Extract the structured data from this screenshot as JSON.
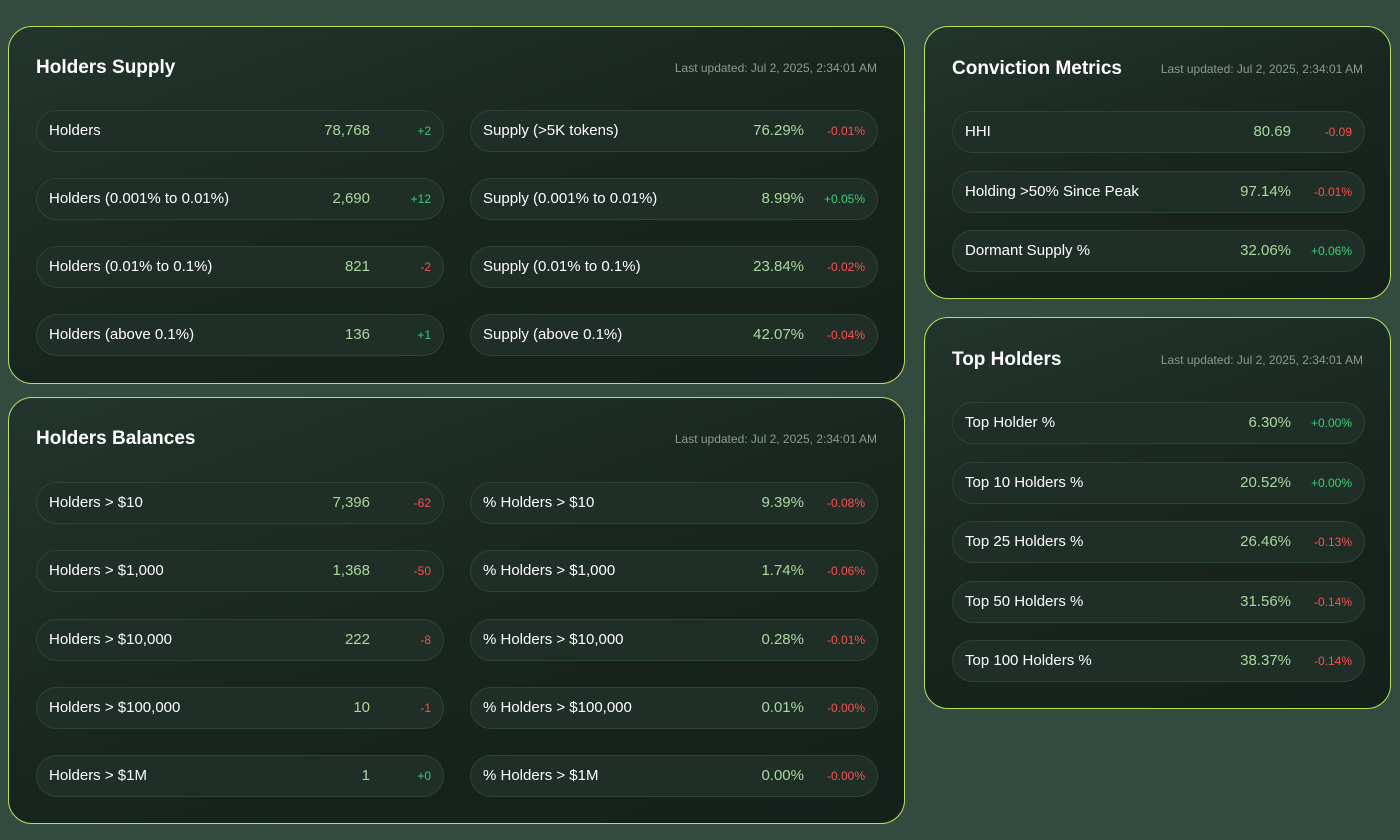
{
  "colors": {
    "positive": "#2fd07a",
    "negative": "#ff4d4d",
    "value": "#a8d89a",
    "border_accent": "#b8e05a"
  },
  "holders_supply": {
    "title": "Holders Supply",
    "updated": "Last updated: Jul 2, 2025, 2:34:01 AM",
    "left": [
      {
        "label": "Holders",
        "value": "78,768",
        "change": "+2",
        "dir": "pos"
      },
      {
        "label": "Holders (0.001% to 0.01%)",
        "value": "2,690",
        "change": "+12",
        "dir": "pos"
      },
      {
        "label": "Holders (0.01% to 0.1%)",
        "value": "821",
        "change": "-2",
        "dir": "neg"
      },
      {
        "label": "Holders (above 0.1%)",
        "value": "136",
        "change": "+1",
        "dir": "pos"
      }
    ],
    "right": [
      {
        "label": "Supply (>5K tokens)",
        "value": "76.29%",
        "change": "-0.01%",
        "dir": "neg"
      },
      {
        "label": "Supply (0.001% to 0.01%)",
        "value": "8.99%",
        "change": "+0.05%",
        "dir": "pos"
      },
      {
        "label": "Supply (0.01% to 0.1%)",
        "value": "23.84%",
        "change": "-0.02%",
        "dir": "neg"
      },
      {
        "label": "Supply (above 0.1%)",
        "value": "42.07%",
        "change": "-0.04%",
        "dir": "neg"
      }
    ]
  },
  "holders_balances": {
    "title": "Holders Balances",
    "updated": "Last updated: Jul 2, 2025, 2:34:01 AM",
    "left": [
      {
        "label": "Holders > $10",
        "value": "7,396",
        "change": "-62",
        "dir": "neg"
      },
      {
        "label": "Holders > $1,000",
        "value": "1,368",
        "change": "-50",
        "dir": "neg"
      },
      {
        "label": "Holders > $10,000",
        "value": "222",
        "change": "-8",
        "dir": "neg"
      },
      {
        "label": "Holders > $100,000",
        "value": "10",
        "change": "-1",
        "dir": "neg"
      },
      {
        "label": "Holders > $1M",
        "value": "1",
        "change": "+0",
        "dir": "pos"
      }
    ],
    "right": [
      {
        "label": "% Holders > $10",
        "value": "9.39%",
        "change": "-0.08%",
        "dir": "neg"
      },
      {
        "label": "% Holders > $1,000",
        "value": "1.74%",
        "change": "-0.06%",
        "dir": "neg"
      },
      {
        "label": "% Holders > $10,000",
        "value": "0.28%",
        "change": "-0.01%",
        "dir": "neg"
      },
      {
        "label": "% Holders > $100,000",
        "value": "0.01%",
        "change": "-0.00%",
        "dir": "neg"
      },
      {
        "label": "% Holders > $1M",
        "value": "0.00%",
        "change": "-0.00%",
        "dir": "neg"
      }
    ]
  },
  "conviction_metrics": {
    "title": "Conviction Metrics",
    "updated": "Last updated: Jul 2, 2025, 2:34:01 AM",
    "rows": [
      {
        "label": "HHI",
        "value": "80.69",
        "change": "-0.09",
        "dir": "neg"
      },
      {
        "label": "Holding >50% Since Peak",
        "value": "97.14%",
        "change": "-0.01%",
        "dir": "neg"
      },
      {
        "label": "Dormant Supply %",
        "value": "32.06%",
        "change": "+0.06%",
        "dir": "pos"
      }
    ]
  },
  "top_holders": {
    "title": "Top Holders",
    "updated": "Last updated: Jul 2, 2025, 2:34:01 AM",
    "rows": [
      {
        "label": "Top Holder %",
        "value": "6.30%",
        "change": "+0.00%",
        "dir": "pos"
      },
      {
        "label": "Top 10 Holders %",
        "value": "20.52%",
        "change": "+0.00%",
        "dir": "pos"
      },
      {
        "label": "Top 25 Holders %",
        "value": "26.46%",
        "change": "-0.13%",
        "dir": "neg"
      },
      {
        "label": "Top 50 Holders %",
        "value": "31.56%",
        "change": "-0.14%",
        "dir": "neg"
      },
      {
        "label": "Top 100 Holders %",
        "value": "38.37%",
        "change": "-0.14%",
        "dir": "neg"
      }
    ]
  }
}
